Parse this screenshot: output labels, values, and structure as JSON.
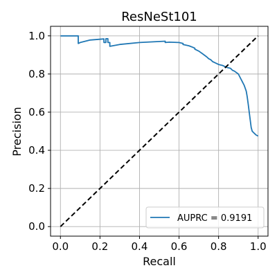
{
  "chart_data": {
    "type": "line",
    "title": "ResNeSt101",
    "xlabel": "Recall",
    "ylabel": "Precision",
    "xlim": [
      -0.05,
      1.05
    ],
    "ylim": [
      -0.05,
      1.05
    ],
    "xticks": [
      0.0,
      0.2,
      0.4,
      0.6,
      0.8,
      1.0
    ],
    "yticks": [
      0.0,
      0.2,
      0.4,
      0.6,
      0.8,
      1.0
    ],
    "xtick_labels": [
      "0.0",
      "0.2",
      "0.4",
      "0.6",
      "0.8",
      "1.0"
    ],
    "ytick_labels": [
      "0.0",
      "0.2",
      "0.4",
      "0.6",
      "0.8",
      "1.0"
    ],
    "grid": true,
    "legend_position": "lower-right",
    "series": [
      {
        "name": "AUPRC = 0.9191",
        "color": "#1f77b4",
        "style": "solid",
        "x": [
          0.0,
          0.09,
          0.09,
          0.1,
          0.15,
          0.22,
          0.22,
          0.23,
          0.23,
          0.24,
          0.24,
          0.25,
          0.25,
          0.3,
          0.4,
          0.53,
          0.53,
          0.55,
          0.6,
          0.62,
          0.62,
          0.65,
          0.67,
          0.68,
          0.68,
          0.7,
          0.72,
          0.74,
          0.75,
          0.76,
          0.77,
          0.78,
          0.8,
          0.82,
          0.84,
          0.86,
          0.87,
          0.88,
          0.9,
          0.91,
          0.92,
          0.93,
          0.94,
          0.945,
          0.95,
          0.955,
          0.96,
          0.965,
          0.97,
          0.98,
          0.99,
          1.0
        ],
        "y": [
          1.0,
          1.0,
          0.96,
          0.965,
          0.978,
          0.984,
          0.965,
          0.965,
          0.985,
          0.985,
          0.965,
          0.965,
          0.945,
          0.955,
          0.965,
          0.972,
          0.965,
          0.967,
          0.965,
          0.96,
          0.955,
          0.948,
          0.94,
          0.935,
          0.93,
          0.92,
          0.905,
          0.89,
          0.88,
          0.875,
          0.865,
          0.86,
          0.85,
          0.845,
          0.835,
          0.83,
          0.82,
          0.815,
          0.8,
          0.78,
          0.76,
          0.74,
          0.71,
          0.68,
          0.64,
          0.6,
          0.56,
          0.52,
          0.5,
          0.49,
          0.48,
          0.475
        ]
      },
      {
        "name": "",
        "color": "#000000",
        "style": "dashed",
        "x": [
          0.0,
          1.0
        ],
        "y": [
          0.0,
          1.0
        ]
      }
    ]
  }
}
